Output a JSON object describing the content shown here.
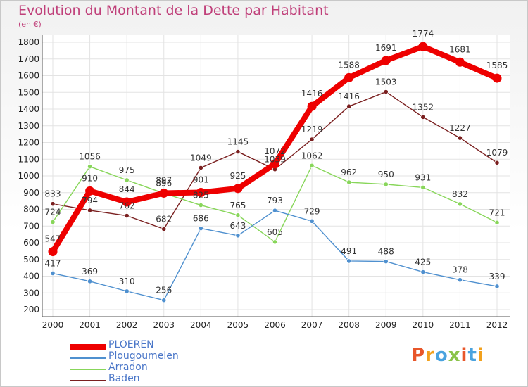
{
  "header": {
    "title": "Evolution du Montant de la Dette par Habitant",
    "subtitle": "(en €)"
  },
  "logo": {
    "text": "Proxiti",
    "colors": [
      "#e8562a",
      "#f2a11d",
      "#4aa3df",
      "#8bc34a",
      "#e8562a",
      "#4aa3df",
      "#f2a11d"
    ]
  },
  "chart_data": {
    "type": "line",
    "title": "Evolution du Montant de la Dette par Habitant",
    "subtitle": "(en €)",
    "xlabel": "",
    "ylabel": "",
    "ylim": [
      200,
      1800
    ],
    "yticks": [
      200,
      300,
      400,
      500,
      600,
      700,
      800,
      900,
      1000,
      1100,
      1200,
      1300,
      1400,
      1500,
      1600,
      1700,
      1800
    ],
    "x": [
      "2000",
      "2001",
      "2002",
      "2003",
      "2004",
      "2005",
      "2006",
      "2007",
      "2008",
      "2009",
      "2010",
      "2011",
      "2012"
    ],
    "grid": true,
    "legend_position": "bottom-left",
    "series": [
      {
        "name": "Baden",
        "color": "#7a1f1f",
        "values": [
          833,
          794,
          762,
          682,
          1049,
          1145,
          1039,
          1219,
          1416,
          1503,
          1352,
          1227,
          1079
        ],
        "labels": [
          "833",
          "794",
          "762",
          "682",
          "1049",
          "1145",
          "1039",
          "1219",
          "1416",
          "1503",
          "1352",
          "1227",
          "1079"
        ]
      },
      {
        "name": "Arradon",
        "color": "#88d65a",
        "values": [
          724,
          1056,
          975,
          896,
          825,
          765,
          605,
          1062,
          962,
          950,
          931,
          832,
          721
        ],
        "labels": [
          "724",
          "1056",
          "975",
          "896",
          "825",
          "765",
          "605",
          "1062",
          "962",
          "950",
          "931",
          "832",
          "721"
        ]
      },
      {
        "name": "Plougoumelen",
        "color": "#4f90cf",
        "values": [
          417,
          369,
          310,
          256,
          686,
          643,
          793,
          729,
          491,
          488,
          425,
          378,
          339
        ],
        "labels": [
          "417",
          "369",
          "310",
          "256",
          "686",
          "643",
          "793",
          "729",
          "491",
          "488",
          "425",
          "378",
          "339"
        ]
      },
      {
        "name": "PLOEREN",
        "color": "#ee0000",
        "values": [
          547,
          910,
          844,
          897,
          901,
          925,
          1072,
          1416,
          1588,
          1691,
          1774,
          1681,
          1585
        ],
        "labels": [
          "547",
          "910",
          "844",
          "897",
          "901",
          "925",
          "1072",
          "1416",
          "1588",
          "1691",
          "1774",
          "1681",
          "1585"
        ]
      }
    ],
    "legend": [
      "PLOEREN",
      "Plougoumelen",
      "Arradon",
      "Baden"
    ]
  }
}
